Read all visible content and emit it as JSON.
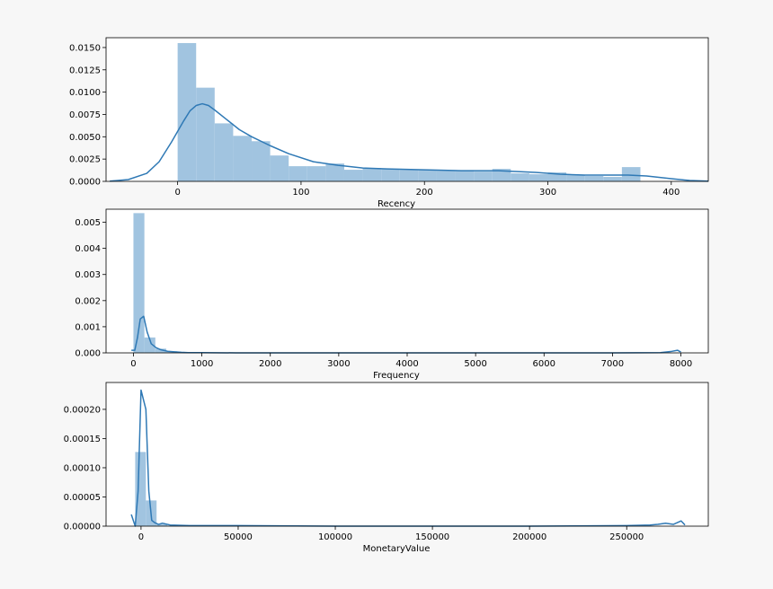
{
  "chart_data": [
    {
      "type": "histogram",
      "xlabel": "Recency",
      "ylabel": "",
      "xlim": [
        -58,
        430
      ],
      "ylim": [
        0,
        0.0161
      ],
      "xticks": [
        0,
        100,
        200,
        300,
        400
      ],
      "yticks": [
        0.0,
        0.0025,
        0.005,
        0.0075,
        0.01,
        0.0125,
        0.015
      ],
      "ytick_labels": [
        "0.0000",
        "0.0025",
        "0.0050",
        "0.0075",
        "0.0100",
        "0.0125",
        "0.0150"
      ],
      "bins": [
        {
          "x0": 0,
          "x1": 15,
          "density": 0.0155
        },
        {
          "x0": 15,
          "x1": 30,
          "density": 0.0105
        },
        {
          "x0": 30,
          "x1": 45,
          "density": 0.0065
        },
        {
          "x0": 45,
          "x1": 60,
          "density": 0.0051
        },
        {
          "x0": 60,
          "x1": 75,
          "density": 0.0045
        },
        {
          "x0": 75,
          "x1": 90,
          "density": 0.0029
        },
        {
          "x0": 90,
          "x1": 105,
          "density": 0.0017
        },
        {
          "x0": 105,
          "x1": 120,
          "density": 0.0017
        },
        {
          "x0": 120,
          "x1": 135,
          "density": 0.002
        },
        {
          "x0": 135,
          "x1": 150,
          "density": 0.0013
        },
        {
          "x0": 150,
          "x1": 165,
          "density": 0.0015
        },
        {
          "x0": 165,
          "x1": 180,
          "density": 0.0014
        },
        {
          "x0": 180,
          "x1": 195,
          "density": 0.0013
        },
        {
          "x0": 195,
          "x1": 210,
          "density": 0.0013
        },
        {
          "x0": 210,
          "x1": 225,
          "density": 0.0012
        },
        {
          "x0": 225,
          "x1": 240,
          "density": 0.0012
        },
        {
          "x0": 240,
          "x1": 255,
          "density": 0.0011
        },
        {
          "x0": 255,
          "x1": 270,
          "density": 0.0014
        },
        {
          "x0": 270,
          "x1": 285,
          "density": 0.0009
        },
        {
          "x0": 285,
          "x1": 300,
          "density": 0.0008
        },
        {
          "x0": 300,
          "x1": 315,
          "density": 0.001
        },
        {
          "x0": 315,
          "x1": 330,
          "density": 0.0007
        },
        {
          "x0": 330,
          "x1": 345,
          "density": 0.0006
        },
        {
          "x0": 345,
          "x1": 360,
          "density": 0.0005
        },
        {
          "x0": 360,
          "x1": 375,
          "density": 0.0016
        }
      ],
      "kde": {
        "x": [
          -55,
          -40,
          -25,
          -15,
          -5,
          5,
          10,
          15,
          20,
          25,
          30,
          40,
          50,
          60,
          75,
          90,
          110,
          130,
          150,
          170,
          200,
          230,
          260,
          290,
          310,
          330,
          350,
          365,
          380,
          400,
          415,
          430
        ],
        "y": [
          2e-05,
          0.0002,
          0.0009,
          0.0022,
          0.0044,
          0.0068,
          0.0079,
          0.0085,
          0.0087,
          0.0085,
          0.008,
          0.0069,
          0.0058,
          0.005,
          0.004,
          0.0031,
          0.0022,
          0.0018,
          0.0015,
          0.0014,
          0.0013,
          0.0012,
          0.0012,
          0.001,
          0.0008,
          0.0007,
          0.0007,
          0.0007,
          0.0006,
          0.0003,
          0.0001,
          2e-05
        ]
      },
      "colors": {
        "bars": "#a1c4e0",
        "line": "#2f79b5"
      }
    },
    {
      "type": "histogram",
      "xlabel": "Frequency",
      "ylabel": "",
      "xlim": [
        -400,
        8400
      ],
      "ylim": [
        0,
        0.0055
      ],
      "xticks": [
        0,
        1000,
        2000,
        3000,
        4000,
        5000,
        6000,
        7000,
        8000
      ],
      "yticks": [
        0.0,
        0.001,
        0.002,
        0.003,
        0.004,
        0.005
      ],
      "ytick_labels": [
        "0.000",
        "0.001",
        "0.002",
        "0.003",
        "0.004",
        "0.005"
      ],
      "bins": [
        {
          "x0": 0,
          "x1": 160,
          "density": 0.00535
        },
        {
          "x0": 160,
          "x1": 320,
          "density": 0.00059
        },
        {
          "x0": 320,
          "x1": 480,
          "density": 0.00016
        },
        {
          "x0": 480,
          "x1": 640,
          "density": 6e-05
        },
        {
          "x0": 640,
          "x1": 800,
          "density": 3e-05
        }
      ],
      "kde": {
        "x": [
          -30,
          20,
          60,
          100,
          150,
          200,
          260,
          330,
          400,
          500,
          600,
          700,
          800,
          1000,
          1500,
          3000,
          5000,
          7000,
          7700,
          7850,
          7950,
          8000
        ],
        "y": [
          0.0001,
          0.0001,
          0.0006,
          0.0013,
          0.0014,
          0.0008,
          0.00035,
          0.0002,
          0.00012,
          6e-05,
          4e-05,
          2e-05,
          1e-05,
          1e-05,
          0.0,
          0.0,
          0.0,
          0.0,
          1e-05,
          5e-05,
          0.0001,
          3e-05
        ]
      },
      "colors": {
        "bars": "#a1c4e0",
        "line": "#2f79b5"
      }
    },
    {
      "type": "histogram",
      "xlabel": "MonetaryValue",
      "ylabel": "",
      "xlim": [
        -18000,
        292000
      ],
      "ylim": [
        0,
        0.000246
      ],
      "xticks": [
        0,
        50000,
        100000,
        150000,
        200000,
        250000
      ],
      "yticks": [
        0.0,
        5e-05,
        0.0001,
        0.00015,
        0.0002
      ],
      "ytick_labels": [
        "0.00000",
        "0.00005",
        "0.00010",
        "0.00015",
        "0.00020"
      ],
      "bins": [
        {
          "x0": -3000,
          "x1": 2500,
          "density": 0.000127
        },
        {
          "x0": 2500,
          "x1": 8000,
          "density": 4.4e-05
        },
        {
          "x0": 8000,
          "x1": 13500,
          "density": 3e-06
        },
        {
          "x0": 13500,
          "x1": 19000,
          "density": 1e-06
        }
      ],
      "kde": {
        "x": [
          -5000,
          -3000,
          -1500,
          0,
          2500,
          4000,
          5500,
          7000,
          9000,
          11000,
          15000,
          25000,
          50000,
          100000,
          200000,
          250000,
          262000,
          266000,
          270000,
          274000,
          278000,
          280000
        ],
        "y": [
          2e-05,
          0.0,
          6e-05,
          0.000233,
          0.0002,
          6e-05,
          1e-05,
          6e-06,
          3e-06,
          5e-06,
          2e-06,
          1e-06,
          1e-06,
          0.0,
          0.0,
          1e-06,
          2e-06,
          3e-06,
          5e-06,
          3e-06,
          9e-06,
          2e-06
        ]
      },
      "colors": {
        "bars": "#a1c4e0",
        "line": "#2f79b5"
      }
    }
  ]
}
